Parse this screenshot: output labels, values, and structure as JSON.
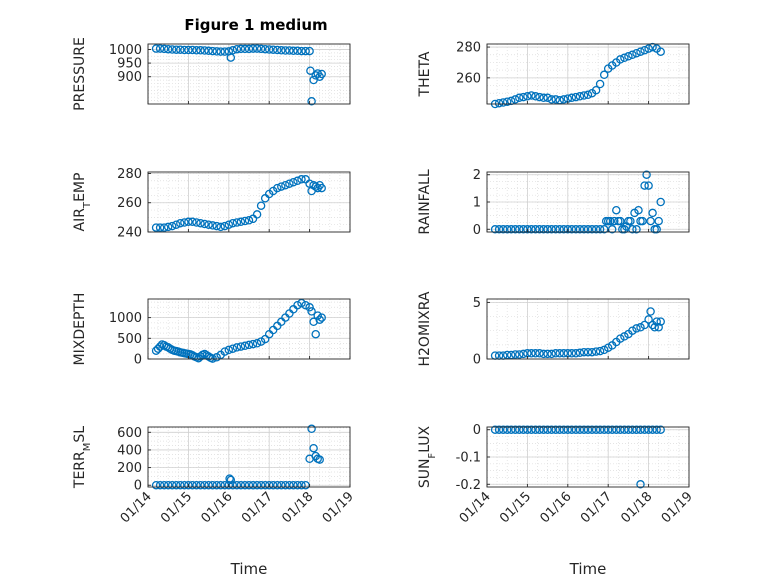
{
  "figure_title": "Figure 1 medium",
  "chart_data": [
    {
      "type": "scatter",
      "ylabel": "PRESSURE",
      "ylim": [
        800,
        1020
      ],
      "yticks": [
        900,
        950,
        1000
      ],
      "xlabel": "",
      "x_ticks": [],
      "grid": true,
      "color": "#0072BD",
      "series": [
        {
          "x": [
            14.2,
            14.3,
            14.4,
            14.5,
            14.6,
            14.7,
            14.8,
            14.9,
            15.0,
            15.1,
            15.2,
            15.3,
            15.4,
            15.5,
            15.6,
            15.7,
            15.8,
            15.9,
            16.0,
            16.05,
            16.1,
            16.2,
            16.3,
            16.4,
            16.5,
            16.6,
            16.7,
            16.8,
            16.9,
            17.0,
            17.1,
            17.2,
            17.3,
            17.4,
            17.5,
            17.6,
            17.7,
            17.8,
            17.9,
            18.0,
            18.02,
            18.05,
            18.1,
            18.15,
            18.2,
            18.25,
            18.3
          ],
          "y": [
            1003,
            1003,
            1002,
            1001,
            1000,
            999,
            999,
            998,
            998,
            998,
            997,
            997,
            996,
            995,
            994,
            993,
            992,
            992,
            993,
            970,
            997,
            1001,
            1002,
            1002,
            1002,
            1003,
            1003,
            1002,
            1001,
            1000,
            999,
            998,
            997,
            996,
            996,
            995,
            995,
            994,
            994,
            994,
            922,
            810,
            888,
            905,
            912,
            900,
            910
          ]
        }
      ]
    },
    {
      "type": "scatter",
      "ylabel": "THETA",
      "ylim": [
        243,
        282
      ],
      "yticks": [
        260,
        280
      ],
      "xlabel": "",
      "x_ticks": [],
      "grid": true,
      "color": "#0072BD",
      "series": [
        {
          "x": [
            14.2,
            14.3,
            14.4,
            14.5,
            14.6,
            14.7,
            14.8,
            14.9,
            15.0,
            15.1,
            15.2,
            15.3,
            15.4,
            15.5,
            15.6,
            15.7,
            15.8,
            15.9,
            16.0,
            16.1,
            16.2,
            16.3,
            16.4,
            16.5,
            16.6,
            16.7,
            16.8,
            16.9,
            17.0,
            17.1,
            17.2,
            17.3,
            17.4,
            17.5,
            17.6,
            17.7,
            17.8,
            17.9,
            18.0,
            18.1,
            18.2,
            18.3
          ],
          "y": [
            243,
            243.5,
            244,
            244.5,
            245,
            246,
            247,
            247.5,
            248,
            248.5,
            248,
            247.5,
            247,
            247,
            246,
            246,
            245.5,
            246,
            246.5,
            247,
            247.5,
            248,
            248.5,
            249,
            250,
            252,
            256,
            262,
            266,
            268,
            270,
            272,
            273,
            274,
            275,
            276,
            277,
            278,
            279,
            280,
            279,
            277
          ]
        }
      ]
    },
    {
      "type": "scatter",
      "ylabel": "AIR_TEMP",
      "ylim": [
        240,
        281
      ],
      "yticks": [
        240,
        260,
        280
      ],
      "xlabel": "",
      "x_ticks": [],
      "grid": true,
      "color": "#0072BD",
      "series": [
        {
          "x": [
            14.2,
            14.3,
            14.4,
            14.5,
            14.6,
            14.7,
            14.8,
            14.9,
            15.0,
            15.1,
            15.2,
            15.3,
            15.4,
            15.5,
            15.6,
            15.7,
            15.8,
            15.9,
            16.0,
            16.1,
            16.2,
            16.3,
            16.4,
            16.5,
            16.6,
            16.7,
            16.8,
            16.9,
            17.0,
            17.1,
            17.2,
            17.3,
            17.4,
            17.5,
            17.6,
            17.7,
            17.8,
            17.9,
            18.0,
            18.05,
            18.1,
            18.15,
            18.2,
            18.25,
            18.3
          ],
          "y": [
            243,
            243,
            243,
            243.5,
            244,
            245,
            246,
            246.5,
            247,
            247,
            246.5,
            246,
            245.5,
            245,
            244.5,
            244,
            243.5,
            244,
            245,
            246,
            246.5,
            247,
            247.5,
            248,
            249,
            252,
            258,
            263,
            266,
            268,
            270,
            271,
            272,
            273,
            274,
            275,
            276,
            276,
            273,
            268,
            272,
            271,
            270,
            272,
            270
          ]
        }
      ]
    },
    {
      "type": "scatter",
      "ylabel": "RAINFALL",
      "ylim": [
        -0.1,
        2.1
      ],
      "yticks": [
        0,
        1,
        2
      ],
      "xlabel": "",
      "x_ticks": [],
      "grid": true,
      "color": "#0072BD",
      "series": [
        {
          "x": [
            14.2,
            14.3,
            14.4,
            14.5,
            14.6,
            14.7,
            14.8,
            14.9,
            15.0,
            15.1,
            15.2,
            15.3,
            15.4,
            15.5,
            15.6,
            15.7,
            15.8,
            15.9,
            16.0,
            16.1,
            16.2,
            16.3,
            16.4,
            16.5,
            16.6,
            16.7,
            16.8,
            16.9,
            16.95,
            17.0,
            17.05,
            17.1,
            17.15,
            17.2,
            17.25,
            17.3,
            17.35,
            17.4,
            17.45,
            17.5,
            17.55,
            17.6,
            17.65,
            17.7,
            17.75,
            17.8,
            17.85,
            17.9,
            17.95,
            18.0,
            18.05,
            18.1,
            18.15,
            18.2,
            18.25,
            18.3
          ],
          "y": [
            0,
            0,
            0,
            0,
            0,
            0,
            0,
            0,
            0,
            0,
            0,
            0,
            0,
            0,
            0,
            0,
            0,
            0,
            0,
            0,
            0,
            0,
            0,
            0,
            0,
            0,
            0,
            0,
            0.3,
            0.3,
            0.3,
            0,
            0.3,
            0.7,
            0.3,
            0.3,
            0,
            0,
            0.1,
            0.3,
            0.3,
            0,
            0.6,
            0,
            0.7,
            0.3,
            0.3,
            1.6,
            2,
            1.6,
            0.3,
            0.6,
            0,
            0,
            0.3,
            1
          ]
        }
      ]
    },
    {
      "type": "scatter",
      "ylabel": "MIXDEPTH",
      "ylim": [
        0,
        1450
      ],
      "yticks": [
        0,
        500,
        1000
      ],
      "xlabel": "",
      "x_ticks": [],
      "grid": true,
      "color": "#0072BD",
      "series": [
        {
          "x": [
            14.2,
            14.25,
            14.3,
            14.35,
            14.4,
            14.45,
            14.5,
            14.55,
            14.6,
            14.65,
            14.7,
            14.75,
            14.8,
            14.85,
            14.9,
            14.95,
            15.0,
            15.05,
            15.1,
            15.15,
            15.2,
            15.25,
            15.3,
            15.35,
            15.4,
            15.45,
            15.5,
            15.55,
            15.6,
            15.7,
            15.8,
            15.9,
            16.0,
            16.1,
            16.2,
            16.3,
            16.4,
            16.5,
            16.6,
            16.7,
            16.8,
            16.9,
            17.0,
            17.1,
            17.2,
            17.3,
            17.4,
            17.5,
            17.6,
            17.7,
            17.8,
            17.9,
            18.0,
            18.05,
            18.1,
            18.15,
            18.2,
            18.25,
            18.3
          ],
          "y": [
            200,
            250,
            300,
            350,
            330,
            300,
            280,
            250,
            220,
            200,
            190,
            180,
            160,
            150,
            140,
            130,
            120,
            110,
            90,
            60,
            40,
            20,
            60,
            100,
            120,
            90,
            60,
            30,
            10,
            40,
            100,
            180,
            220,
            250,
            280,
            300,
            320,
            340,
            360,
            380,
            420,
            480,
            600,
            700,
            800,
            900,
            1000,
            1100,
            1200,
            1300,
            1350,
            1300,
            1250,
            1150,
            900,
            600,
            1050,
            950,
            1000
          ]
        }
      ]
    },
    {
      "type": "scatter",
      "ylabel": "H2OMIXRA",
      "ylim": [
        0,
        5.3
      ],
      "yticks": [
        0,
        5
      ],
      "xlabel": "",
      "x_ticks": [],
      "grid": true,
      "color": "#0072BD",
      "series": [
        {
          "x": [
            14.2,
            14.3,
            14.4,
            14.5,
            14.6,
            14.7,
            14.8,
            14.9,
            15.0,
            15.1,
            15.2,
            15.3,
            15.4,
            15.5,
            15.6,
            15.7,
            15.8,
            15.9,
            16.0,
            16.1,
            16.2,
            16.3,
            16.4,
            16.5,
            16.6,
            16.7,
            16.8,
            16.9,
            17.0,
            17.1,
            17.2,
            17.3,
            17.4,
            17.5,
            17.6,
            17.7,
            17.8,
            17.9,
            18.0,
            18.05,
            18.1,
            18.15,
            18.2,
            18.25,
            18.3
          ],
          "y": [
            0.3,
            0.3,
            0.3,
            0.35,
            0.35,
            0.4,
            0.4,
            0.45,
            0.5,
            0.5,
            0.5,
            0.5,
            0.45,
            0.45,
            0.45,
            0.5,
            0.5,
            0.5,
            0.5,
            0.5,
            0.5,
            0.55,
            0.6,
            0.6,
            0.6,
            0.65,
            0.7,
            0.8,
            1.0,
            1.2,
            1.5,
            1.8,
            2.0,
            2.2,
            2.5,
            2.7,
            2.8,
            3.0,
            3.5,
            4.2,
            3.0,
            2.8,
            3.3,
            2.8,
            3.3
          ]
        }
      ]
    },
    {
      "type": "scatter",
      "ylabel": "TERR_MSL",
      "ylim": [
        -20,
        660
      ],
      "yticks": [
        0,
        200,
        400,
        600
      ],
      "xlabel": "Time",
      "x_ticks": [
        "01/14",
        "01/15",
        "01/16",
        "01/17",
        "01/18",
        "01/19"
      ],
      "grid": true,
      "color": "#0072BD",
      "series": [
        {
          "x": [
            14.2,
            14.3,
            14.4,
            14.5,
            14.6,
            14.7,
            14.8,
            14.9,
            15.0,
            15.1,
            15.2,
            15.3,
            15.4,
            15.5,
            15.6,
            15.7,
            15.8,
            15.9,
            16.0,
            16.02,
            16.05,
            16.1,
            16.2,
            16.3,
            16.4,
            16.5,
            16.6,
            16.7,
            16.8,
            16.9,
            17.0,
            17.1,
            17.2,
            17.3,
            17.4,
            17.5,
            17.6,
            17.7,
            17.8,
            17.9,
            18.0,
            18.05,
            18.1,
            18.15,
            18.2,
            18.25
          ],
          "y": [
            0,
            0,
            0,
            0,
            0,
            0,
            0,
            0,
            0,
            0,
            0,
            0,
            0,
            0,
            0,
            0,
            0,
            0,
            0,
            75,
            60,
            0,
            0,
            0,
            0,
            0,
            0,
            0,
            0,
            0,
            0,
            0,
            0,
            0,
            0,
            0,
            0,
            0,
            0,
            0,
            300,
            640,
            420,
            330,
            300,
            290
          ]
        }
      ]
    },
    {
      "type": "scatter",
      "ylabel": "SUN_FLUX",
      "ylim": [
        -0.21,
        0.01
      ],
      "yticks": [
        -0.2,
        -0.1,
        0
      ],
      "xlabel": "Time",
      "x_ticks": [
        "01/14",
        "01/15",
        "01/16",
        "01/17",
        "01/18",
        "01/19"
      ],
      "grid": true,
      "color": "#0072BD",
      "series": [
        {
          "x": [
            14.2,
            14.3,
            14.4,
            14.5,
            14.6,
            14.7,
            14.8,
            14.9,
            15.0,
            15.1,
            15.2,
            15.3,
            15.4,
            15.5,
            15.6,
            15.7,
            15.8,
            15.9,
            16.0,
            16.1,
            16.2,
            16.3,
            16.4,
            16.5,
            16.6,
            16.7,
            16.8,
            16.9,
            17.0,
            17.1,
            17.2,
            17.3,
            17.4,
            17.5,
            17.6,
            17.7,
            17.8,
            17.9,
            18.0,
            18.1,
            18.2,
            18.3,
            17.8
          ],
          "y": [
            0,
            0,
            0,
            0,
            0,
            0,
            0,
            0,
            0,
            0,
            0,
            0,
            0,
            0,
            0,
            0,
            0,
            0,
            0,
            0,
            0,
            0,
            0,
            0,
            0,
            0,
            0,
            0,
            0,
            0,
            0,
            0,
            0,
            0,
            0,
            0,
            0,
            0,
            0,
            0,
            0,
            0,
            -0.2
          ]
        }
      ]
    }
  ]
}
